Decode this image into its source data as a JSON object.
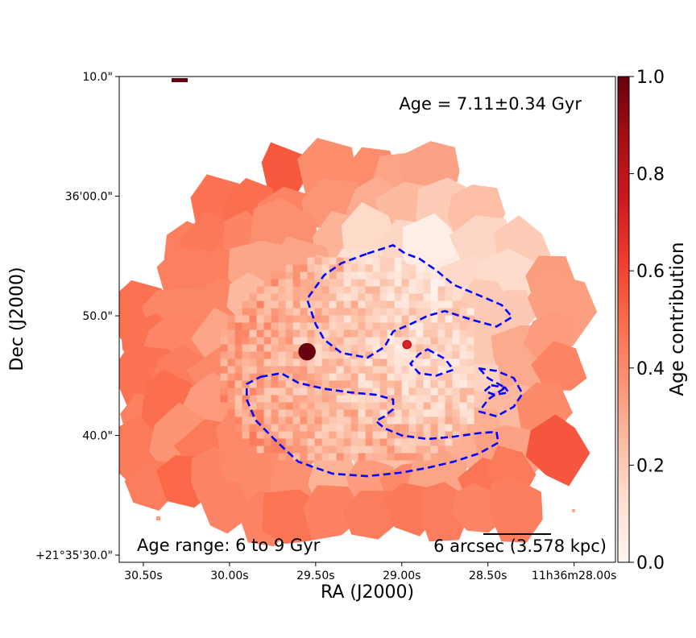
{
  "colors": {
    "contour": "#0000ff",
    "frame": "#000000",
    "cmap": [
      "#fff5f0",
      "#fee0d2",
      "#fcbba1",
      "#fc9272",
      "#fb6a4a",
      "#ef3b2c",
      "#cb181d",
      "#a50f15",
      "#67000d"
    ]
  },
  "chart_data": {
    "type": "heatmap",
    "title": "",
    "annotation_age": "Age = 7.11±0.34 Gyr",
    "annotation_range": "Age range: 6 to 9 Gyr",
    "scale_bar_label": "6 arcsec (3.578 kpc)",
    "xlabel": "RA (J2000)",
    "ylabel": "Dec (J2000)",
    "x_ticks": [
      {
        "label": "30.50s",
        "ra_sec": 30.5
      },
      {
        "label": "30.00s",
        "ra_sec": 30.0
      },
      {
        "label": "29.50s",
        "ra_sec": 29.5
      },
      {
        "label": "29.00s",
        "ra_sec": 29.0
      },
      {
        "label": "28.50s",
        "ra_sec": 28.5
      },
      {
        "label": "11h36m28.00s",
        "ra_sec": 28.0
      }
    ],
    "y_ticks": [
      {
        "label": "+21°35'30.0\"",
        "dec_arcsec": 30
      },
      {
        "label": "40.0\"",
        "dec_arcsec": 40
      },
      {
        "label": "50.0\"",
        "dec_arcsec": 50
      },
      {
        "label": "36'00.0\"",
        "dec_arcsec": 60
      },
      {
        "label": "10.0\"",
        "dec_arcsec": 70
      }
    ],
    "ra_range_sec": [
      30.64,
      27.76
    ],
    "dec_range_arcsec": [
      29.4,
      70.0
    ],
    "colorbar": {
      "label": "Age contribution",
      "range": [
        0.0,
        1.0
      ],
      "ticks": [
        {
          "label": "0.0",
          "value": 0.0
        },
        {
          "label": "0.2",
          "value": 0.2
        },
        {
          "label": "0.4",
          "value": 0.4
        },
        {
          "label": "0.6",
          "value": 0.6
        },
        {
          "label": "0.8",
          "value": 0.8
        },
        {
          "label": "1.0",
          "value": 1.0
        }
      ]
    },
    "galaxy_center": {
      "ra_sec": 29.3,
      "dec_arcsec": 46.0
    },
    "bright_sources": [
      {
        "ra_sec": 29.55,
        "dec_arcsec": 47.0,
        "value": 1.0
      },
      {
        "ra_sec": 28.97,
        "dec_arcsec": 47.6,
        "value": 0.7
      }
    ],
    "value_field": {
      "description": "Voronoi-binned age contribution map: high in outer south-west and north rim, low in north-east",
      "outer_west": 0.5,
      "outer_north": 0.55,
      "outer_east": 0.55,
      "outer_south": 0.5,
      "inner_mid": 0.25,
      "north_east": 0.05
    },
    "contours": [
      {
        "name": "southern arc",
        "points": [
          [
            29.82,
            44.9
          ],
          [
            29.7,
            45.2
          ],
          [
            29.6,
            44.4
          ],
          [
            29.45,
            43.9
          ],
          [
            29.3,
            43.6
          ],
          [
            29.15,
            43.4
          ],
          [
            29.05,
            43.0
          ],
          [
            29.05,
            42.2
          ],
          [
            29.1,
            41.6
          ],
          [
            29.15,
            41.2
          ],
          [
            29.1,
            40.6
          ],
          [
            29.0,
            40.0
          ],
          [
            28.85,
            39.7
          ],
          [
            28.7,
            39.9
          ],
          [
            28.55,
            40.2
          ],
          [
            28.45,
            40.3
          ],
          [
            28.44,
            39.4
          ],
          [
            28.55,
            38.5
          ],
          [
            28.7,
            37.8
          ],
          [
            28.85,
            37.3
          ],
          [
            29.0,
            36.9
          ],
          [
            29.2,
            36.6
          ],
          [
            29.4,
            36.8
          ],
          [
            29.6,
            37.8
          ],
          [
            29.72,
            39.4
          ],
          [
            29.85,
            41.3
          ],
          [
            29.9,
            43.0
          ],
          [
            29.9,
            44.3
          ],
          [
            29.82,
            44.9
          ]
        ]
      },
      {
        "name": "northern loop",
        "points": [
          [
            29.2,
            55.2
          ],
          [
            29.05,
            55.9
          ],
          [
            28.98,
            55.2
          ],
          [
            28.9,
            54.8
          ],
          [
            28.8,
            53.8
          ],
          [
            28.7,
            52.6
          ],
          [
            28.6,
            52.0
          ],
          [
            28.5,
            51.4
          ],
          [
            28.42,
            50.9
          ],
          [
            28.36,
            49.9
          ],
          [
            28.45,
            49.1
          ],
          [
            28.6,
            49.7
          ],
          [
            28.75,
            50.4
          ],
          [
            28.85,
            50.0
          ],
          [
            28.95,
            49.3
          ],
          [
            29.05,
            48.7
          ],
          [
            29.1,
            47.4
          ],
          [
            29.2,
            46.5
          ],
          [
            29.35,
            46.9
          ],
          [
            29.45,
            48.0
          ],
          [
            29.5,
            49.3
          ],
          [
            29.55,
            51.4
          ],
          [
            29.45,
            53.4
          ],
          [
            29.35,
            54.4
          ],
          [
            29.2,
            55.2
          ]
        ]
      },
      {
        "name": "east loop",
        "points": [
          [
            28.55,
            45.6
          ],
          [
            28.5,
            44.8
          ],
          [
            28.4,
            44.0
          ],
          [
            28.5,
            43.0
          ],
          [
            28.55,
            42.0
          ],
          [
            28.45,
            41.6
          ],
          [
            28.35,
            42.4
          ],
          [
            28.3,
            43.5
          ],
          [
            28.35,
            44.8
          ],
          [
            28.45,
            45.4
          ],
          [
            28.55,
            45.6
          ]
        ]
      },
      {
        "name": "inner ring",
        "points": [
          [
            28.85,
            47.2
          ],
          [
            28.75,
            46.4
          ],
          [
            28.7,
            45.5
          ],
          [
            28.8,
            45.0
          ],
          [
            28.9,
            45.2
          ],
          [
            28.95,
            46.0
          ],
          [
            28.9,
            46.8
          ],
          [
            28.85,
            47.2
          ]
        ]
      },
      {
        "name": "small eastern loop",
        "points": [
          [
            28.48,
            44.2
          ],
          [
            28.4,
            44.0
          ],
          [
            28.38,
            43.6
          ],
          [
            28.46,
            43.4
          ],
          [
            28.52,
            43.7
          ],
          [
            28.48,
            44.2
          ]
        ]
      }
    ]
  }
}
